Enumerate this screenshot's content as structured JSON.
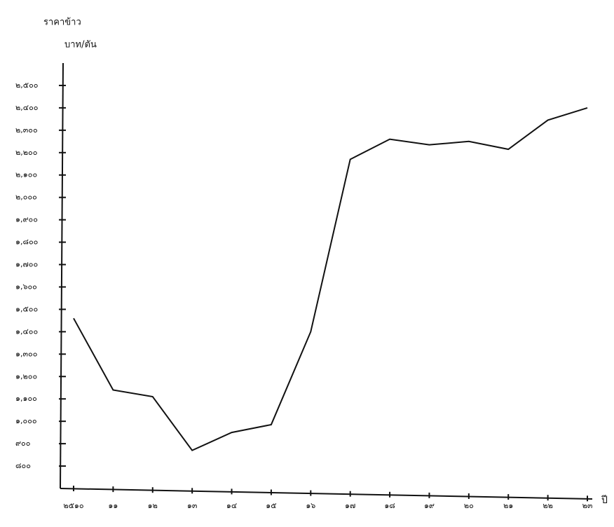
{
  "chart_data": {
    "type": "line",
    "y_title": "ราคาข้าว",
    "y_unit": "บาท/ตัน",
    "x_title": "ปี",
    "categories": [
      "๒๕๑๐",
      "๑๑",
      "๑๒",
      "๑๓",
      "๑๔",
      "๑๕",
      "๑๖",
      "๑๗",
      "๑๘",
      "๑๙",
      "๒๐",
      "๒๑",
      "๒๒",
      "๒๓"
    ],
    "series": [
      {
        "name": "ราคาข้าว",
        "color": "#111111",
        "values": [
          1460,
          1140,
          1110,
          870,
          950,
          985,
          1400,
          2170,
          2260,
          2235,
          2250,
          2215,
          2345,
          2400
        ]
      }
    ],
    "ylim": [
      700,
      2600
    ],
    "yticks": [
      {
        "value": 800,
        "label": "๘๐๐"
      },
      {
        "value": 900,
        "label": "๙๐๐"
      },
      {
        "value": 1000,
        "label": "๑,๐๐๐"
      },
      {
        "value": 1100,
        "label": "๑,๑๐๐"
      },
      {
        "value": 1200,
        "label": "๑,๒๐๐"
      },
      {
        "value": 1300,
        "label": "๑,๓๐๐"
      },
      {
        "value": 1400,
        "label": "๑,๔๐๐"
      },
      {
        "value": 1500,
        "label": "๑,๕๐๐"
      },
      {
        "value": 1600,
        "label": "๑,๖๐๐"
      },
      {
        "value": 1700,
        "label": "๑,๗๐๐"
      },
      {
        "value": 1800,
        "label": "๑,๘๐๐"
      },
      {
        "value": 1900,
        "label": "๑,๙๐๐"
      },
      {
        "value": 2000,
        "label": "๒,๐๐๐"
      },
      {
        "value": 2100,
        "label": "๒,๑๐๐"
      },
      {
        "value": 2200,
        "label": "๒,๒๐๐"
      },
      {
        "value": 2300,
        "label": "๒,๓๐๐"
      },
      {
        "value": 2400,
        "label": "๒,๔๐๐"
      },
      {
        "value": 2500,
        "label": "๒,๕๐๐"
      }
    ],
    "grid": false
  }
}
